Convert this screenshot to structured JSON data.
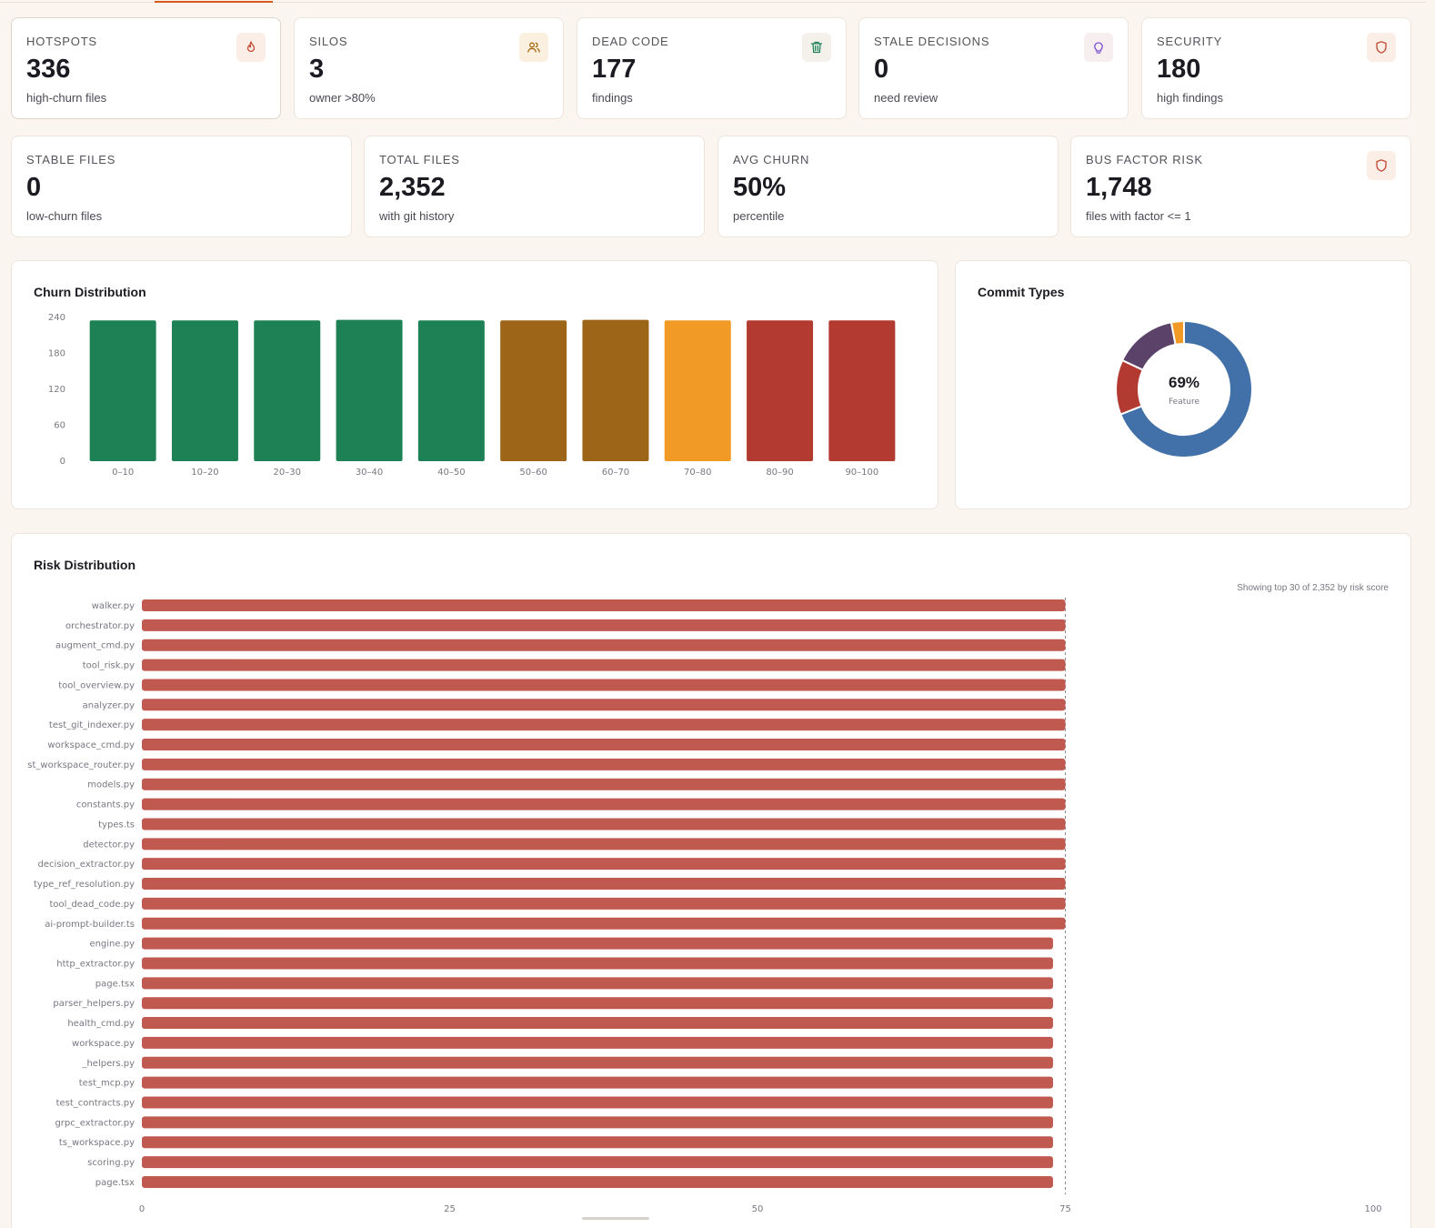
{
  "stats_row1": [
    {
      "label": "HOTSPOTS",
      "value": "336",
      "sub": "high-churn files",
      "icon": "flame-icon",
      "icon_color": "#c2452f",
      "icon_bg": "#fbeee6"
    },
    {
      "label": "SILOS",
      "value": "3",
      "sub": "owner >80%",
      "icon": "users-icon",
      "icon_color": "#a8690f",
      "icon_bg": "#fbf0e0"
    },
    {
      "label": "DEAD CODE",
      "value": "177",
      "sub": "findings",
      "icon": "trash-icon",
      "icon_color": "#1e8156",
      "icon_bg": "#f4f1ea"
    },
    {
      "label": "STALE DECISIONS",
      "value": "0",
      "sub": "need review",
      "icon": "lightbulb-icon",
      "icon_color": "#7a4fd0",
      "icon_bg": "#f7eef0"
    },
    {
      "label": "SECURITY",
      "value": "180",
      "sub": "high findings",
      "icon": "shield-icon",
      "icon_color": "#c2452f",
      "icon_bg": "#fbeee6"
    }
  ],
  "stats_row2": [
    {
      "label": "STABLE FILES",
      "value": "0",
      "sub": "low-churn files"
    },
    {
      "label": "TOTAL FILES",
      "value": "2,352",
      "sub": "with git history"
    },
    {
      "label": "AVG CHURN",
      "value": "50%",
      "sub": "percentile"
    },
    {
      "label": "BUS FACTOR RISK",
      "value": "1,748",
      "sub": "files with factor <= 1",
      "icon": "shield-icon",
      "icon_color": "#c2452f",
      "icon_bg": "#fbeee6"
    }
  ],
  "churn_panel": {
    "title": "Churn Distribution"
  },
  "commit_panel": {
    "title": "Commit Types",
    "center_value": "69%",
    "center_label": "Feature"
  },
  "risk_panel": {
    "title": "Risk Distribution",
    "note": "Showing top 30 of 2,352 by risk score"
  },
  "colors": {
    "green": "#1e8156",
    "brown": "#9c6518",
    "orange": "#f29a26",
    "red": "#b23a30",
    "risk_bar": "#c05a50",
    "blue": "#4270a8",
    "purple": "#5b4268"
  },
  "chart_data": [
    {
      "type": "bar",
      "title": "Churn Distribution",
      "categories": [
        "0–10",
        "10–20",
        "20–30",
        "30–40",
        "40–50",
        "50–60",
        "60–70",
        "70–80",
        "80–90",
        "90–100"
      ],
      "values": [
        235,
        235,
        235,
        236,
        235,
        235,
        236,
        235,
        235,
        235
      ],
      "bar_colors": [
        "#1e8156",
        "#1e8156",
        "#1e8156",
        "#1e8156",
        "#1e8156",
        "#9c6518",
        "#9c6518",
        "#f29a26",
        "#b23a30",
        "#b23a30"
      ],
      "yticks": [
        "0",
        "60",
        "120",
        "180",
        "240"
      ],
      "ylim": [
        0,
        240
      ],
      "grid": false
    },
    {
      "type": "pie",
      "title": "Commit Types",
      "slices": [
        {
          "value": 69,
          "color": "#4270a8"
        },
        {
          "value": 13,
          "color": "#b23a30"
        },
        {
          "value": 15,
          "color": "#5b4268"
        },
        {
          "value": 3,
          "color": "#f29a26"
        }
      ]
    },
    {
      "type": "bar",
      "orientation": "horizontal",
      "title": "Risk Distribution",
      "categories": [
        "walker.py",
        "orchestrator.py",
        "augment_cmd.py",
        "tool_risk.py",
        "tool_overview.py",
        "analyzer.py",
        "test_git_indexer.py",
        "workspace_cmd.py",
        "st_workspace_router.py",
        "models.py",
        "constants.py",
        "types.ts",
        "detector.py",
        "decision_extractor.py",
        "type_ref_resolution.py",
        "tool_dead_code.py",
        "ai-prompt-builder.ts",
        "engine.py",
        "http_extractor.py",
        "page.tsx",
        "parser_helpers.py",
        "health_cmd.py",
        "workspace.py",
        "_helpers.py",
        "test_mcp.py",
        "test_contracts.py",
        "grpc_extractor.py",
        "ts_workspace.py",
        "scoring.py",
        "page.tsx"
      ],
      "values": [
        75,
        75,
        75,
        75,
        75,
        75,
        75,
        75,
        75,
        75,
        75,
        75,
        75,
        75,
        75,
        75,
        75,
        74,
        74,
        74,
        74,
        74,
        74,
        74,
        74,
        74,
        74,
        74,
        74,
        74
      ],
      "xticks": [
        "0",
        "25",
        "50",
        "75",
        "100"
      ],
      "xlim": [
        0,
        100
      ],
      "reference_line": 75
    }
  ]
}
